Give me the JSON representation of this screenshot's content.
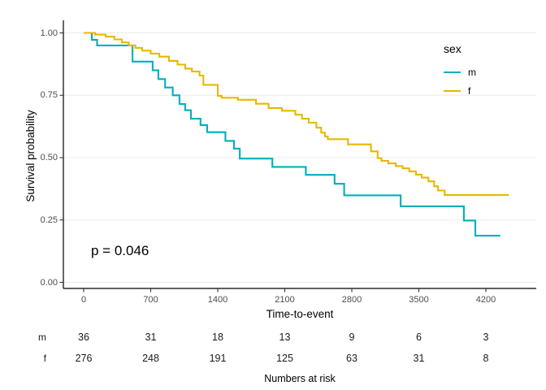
{
  "figure": {
    "y_axis": {
      "title": "Survival probability",
      "tick_labels": [
        "1.00",
        "0.75",
        "0.50",
        "0.25",
        "0.00"
      ],
      "tick_values": [
        1.0,
        0.75,
        0.5,
        0.25,
        0.0
      ]
    },
    "x_axis": {
      "title": "Time-to-event",
      "tick_labels": [
        "0",
        "700",
        "1400",
        "2100",
        "2800",
        "3500",
        "4200"
      ],
      "tick_values": [
        0,
        700,
        1400,
        2100,
        2800,
        3500,
        4200
      ]
    },
    "legend": {
      "title": "sex",
      "items": [
        {
          "label": "m",
          "color": "#00AFBB"
        },
        {
          "label": "f",
          "color": "#E7B800"
        }
      ]
    },
    "annotation": {
      "p_value": "p = 0.046"
    }
  },
  "chart_data": {
    "type": "line",
    "subtype": "kaplan-meier-step",
    "title": "",
    "xlabel": "Time-to-event",
    "ylabel": "Survival probability",
    "xlim": [
      0,
      4700
    ],
    "ylim": [
      0.0,
      1.0
    ],
    "grid": "horizontal-only",
    "legend_position": "right",
    "legend_title": "sex",
    "p_value": "p = 0.046",
    "series": [
      {
        "name": "m",
        "color": "#00AFBB",
        "points": [
          [
            0,
            1.0
          ],
          [
            85,
            0.972
          ],
          [
            140,
            0.95
          ],
          [
            510,
            0.885
          ],
          [
            720,
            0.85
          ],
          [
            780,
            0.815
          ],
          [
            850,
            0.781
          ],
          [
            930,
            0.75
          ],
          [
            1000,
            0.715
          ],
          [
            1060,
            0.69
          ],
          [
            1120,
            0.656
          ],
          [
            1220,
            0.63
          ],
          [
            1290,
            0.602
          ],
          [
            1480,
            0.567
          ],
          [
            1570,
            0.536
          ],
          [
            1630,
            0.496
          ],
          [
            1970,
            0.463
          ],
          [
            2320,
            0.431
          ],
          [
            2620,
            0.395
          ],
          [
            2720,
            0.349
          ],
          [
            3310,
            0.305
          ],
          [
            3970,
            0.248
          ],
          [
            4090,
            0.187
          ],
          [
            4350,
            0.187
          ]
        ]
      },
      {
        "name": "f",
        "color": "#E7B800",
        "points": [
          [
            0,
            1.0
          ],
          [
            120,
            0.993
          ],
          [
            230,
            0.985
          ],
          [
            320,
            0.974
          ],
          [
            400,
            0.962
          ],
          [
            470,
            0.95
          ],
          [
            540,
            0.94
          ],
          [
            610,
            0.929
          ],
          [
            700,
            0.917
          ],
          [
            790,
            0.905
          ],
          [
            890,
            0.888
          ],
          [
            980,
            0.873
          ],
          [
            1060,
            0.857
          ],
          [
            1130,
            0.845
          ],
          [
            1210,
            0.829
          ],
          [
            1250,
            0.792
          ],
          [
            1400,
            0.748
          ],
          [
            1440,
            0.74
          ],
          [
            1610,
            0.732
          ],
          [
            1800,
            0.716
          ],
          [
            1930,
            0.699
          ],
          [
            2070,
            0.688
          ],
          [
            2210,
            0.672
          ],
          [
            2280,
            0.656
          ],
          [
            2350,
            0.64
          ],
          [
            2430,
            0.62
          ],
          [
            2480,
            0.6
          ],
          [
            2520,
            0.585
          ],
          [
            2550,
            0.574
          ],
          [
            2760,
            0.553
          ],
          [
            3000,
            0.525
          ],
          [
            3070,
            0.498
          ],
          [
            3110,
            0.487
          ],
          [
            3180,
            0.477
          ],
          [
            3260,
            0.466
          ],
          [
            3330,
            0.457
          ],
          [
            3400,
            0.445
          ],
          [
            3470,
            0.432
          ],
          [
            3530,
            0.42
          ],
          [
            3600,
            0.405
          ],
          [
            3660,
            0.385
          ],
          [
            3700,
            0.368
          ],
          [
            3770,
            0.35
          ],
          [
            4440,
            0.35
          ]
        ]
      }
    ]
  },
  "risk_table": {
    "title": "Numbers at risk",
    "time_points": [
      0,
      700,
      1400,
      2100,
      2800,
      3500,
      4200
    ],
    "rows": [
      {
        "label": "m",
        "counts": [
          "36",
          "31",
          "18",
          "13",
          "9",
          "6",
          "3"
        ]
      },
      {
        "label": "f",
        "counts": [
          "276",
          "248",
          "191",
          "125",
          "63",
          "31",
          "8"
        ]
      }
    ]
  },
  "colors": {
    "male_curve": "#00AFBB",
    "female_curve": "#E7B800",
    "gridline": "#ebebeb",
    "axis_line": "#000000",
    "tick_text": "#4d4d4d"
  }
}
